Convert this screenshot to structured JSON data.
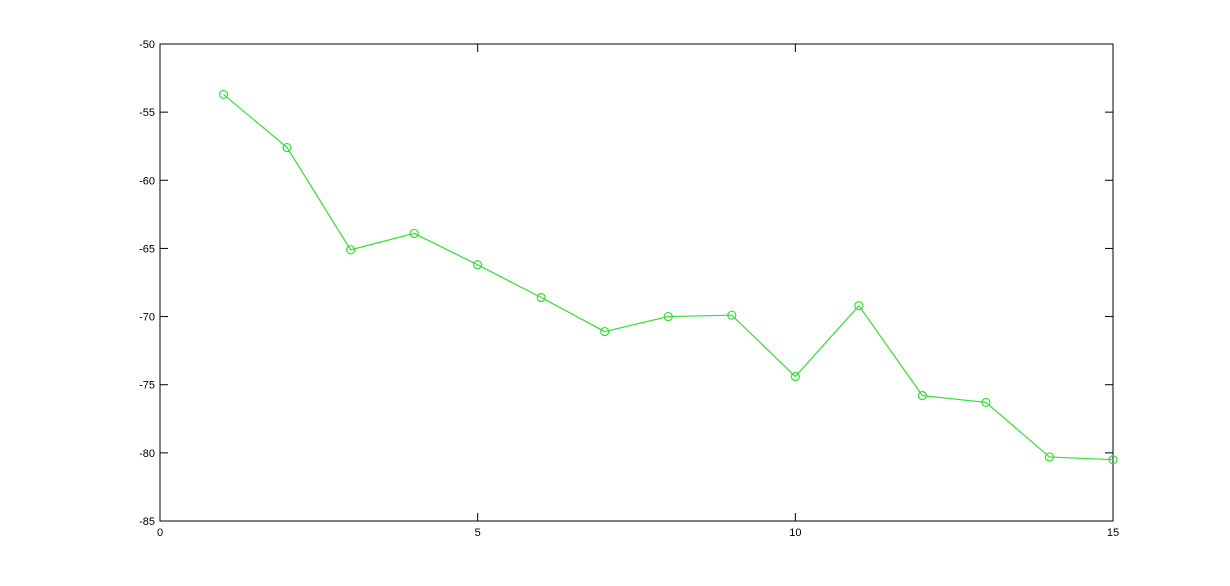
{
  "chart_data": {
    "type": "line",
    "title": "",
    "xlabel": "",
    "ylabel": "",
    "xlim": [
      0,
      15
    ],
    "ylim": [
      -85,
      -50
    ],
    "xticks": [
      0,
      5,
      10,
      15
    ],
    "yticks": [
      -50,
      -55,
      -60,
      -65,
      -70,
      -75,
      -80,
      -85
    ],
    "grid": false,
    "legend": "none",
    "marker": "circle",
    "line_color": "#33dd33",
    "x": [
      1,
      2,
      3,
      4,
      5,
      6,
      7,
      8,
      9,
      10,
      11,
      12,
      13,
      14,
      15
    ],
    "series": [
      {
        "values": [
          -53.7,
          -57.6,
          -65.1,
          -63.9,
          -66.2,
          -68.6,
          -71.1,
          -70.0,
          -69.9,
          -74.4,
          -69.2,
          -75.8,
          -76.3,
          -80.3,
          -80.5
        ]
      }
    ]
  }
}
